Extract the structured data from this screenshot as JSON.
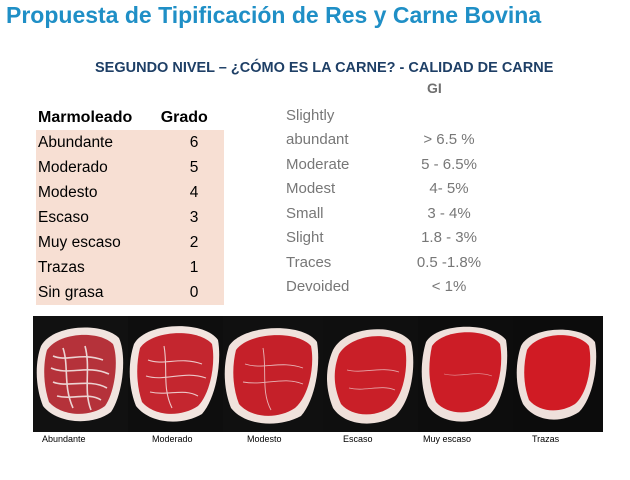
{
  "title": "Propuesta de Tipificación de Res y Carne Bovina",
  "subtitle": "SEGUNDO NIVEL – ¿CÓMO ES LA CARNE? - CALIDAD DE CARNE",
  "table": {
    "header_marbling": "Marmoleado",
    "header_grade": "Grado",
    "rows": [
      {
        "name": "Abundante",
        "grade": "6"
      },
      {
        "name": "Moderado",
        "grade": "5"
      },
      {
        "name": "Modesto",
        "grade": "4"
      },
      {
        "name": "Escaso",
        "grade": "3"
      },
      {
        "name": "Muy escaso",
        "grade": "2"
      },
      {
        "name": "Trazas",
        "grade": "1"
      },
      {
        "name": "Sin grasa",
        "grade": "0"
      }
    ]
  },
  "gi": {
    "header": "GI",
    "rows": [
      {
        "en_line1": "Slightly",
        "en_line2": "abundant",
        "pct": "> 6.5 %"
      },
      {
        "en": "Moderate",
        "pct": "5 - 6.5%"
      },
      {
        "en": "Modest",
        "pct": "4- 5%"
      },
      {
        "en": "Small",
        "pct": "3 - 4%"
      },
      {
        "en": "Slight",
        "pct": "1.8 - 3%"
      },
      {
        "en": "Traces",
        "pct": "0.5 -1.8%"
      },
      {
        "en": "Devoided",
        "pct": "< 1%"
      }
    ]
  },
  "captions": [
    "Abundante",
    "Moderado",
    "Modesto",
    "Escaso",
    "Muy escaso",
    "Trazas"
  ],
  "colors": {
    "title": "#1f8fc6",
    "subtitle": "#1e3f66",
    "table_bg": "#f7dfd3",
    "meat_red": "#c81e26",
    "fat_white": "#f4e7e2"
  }
}
